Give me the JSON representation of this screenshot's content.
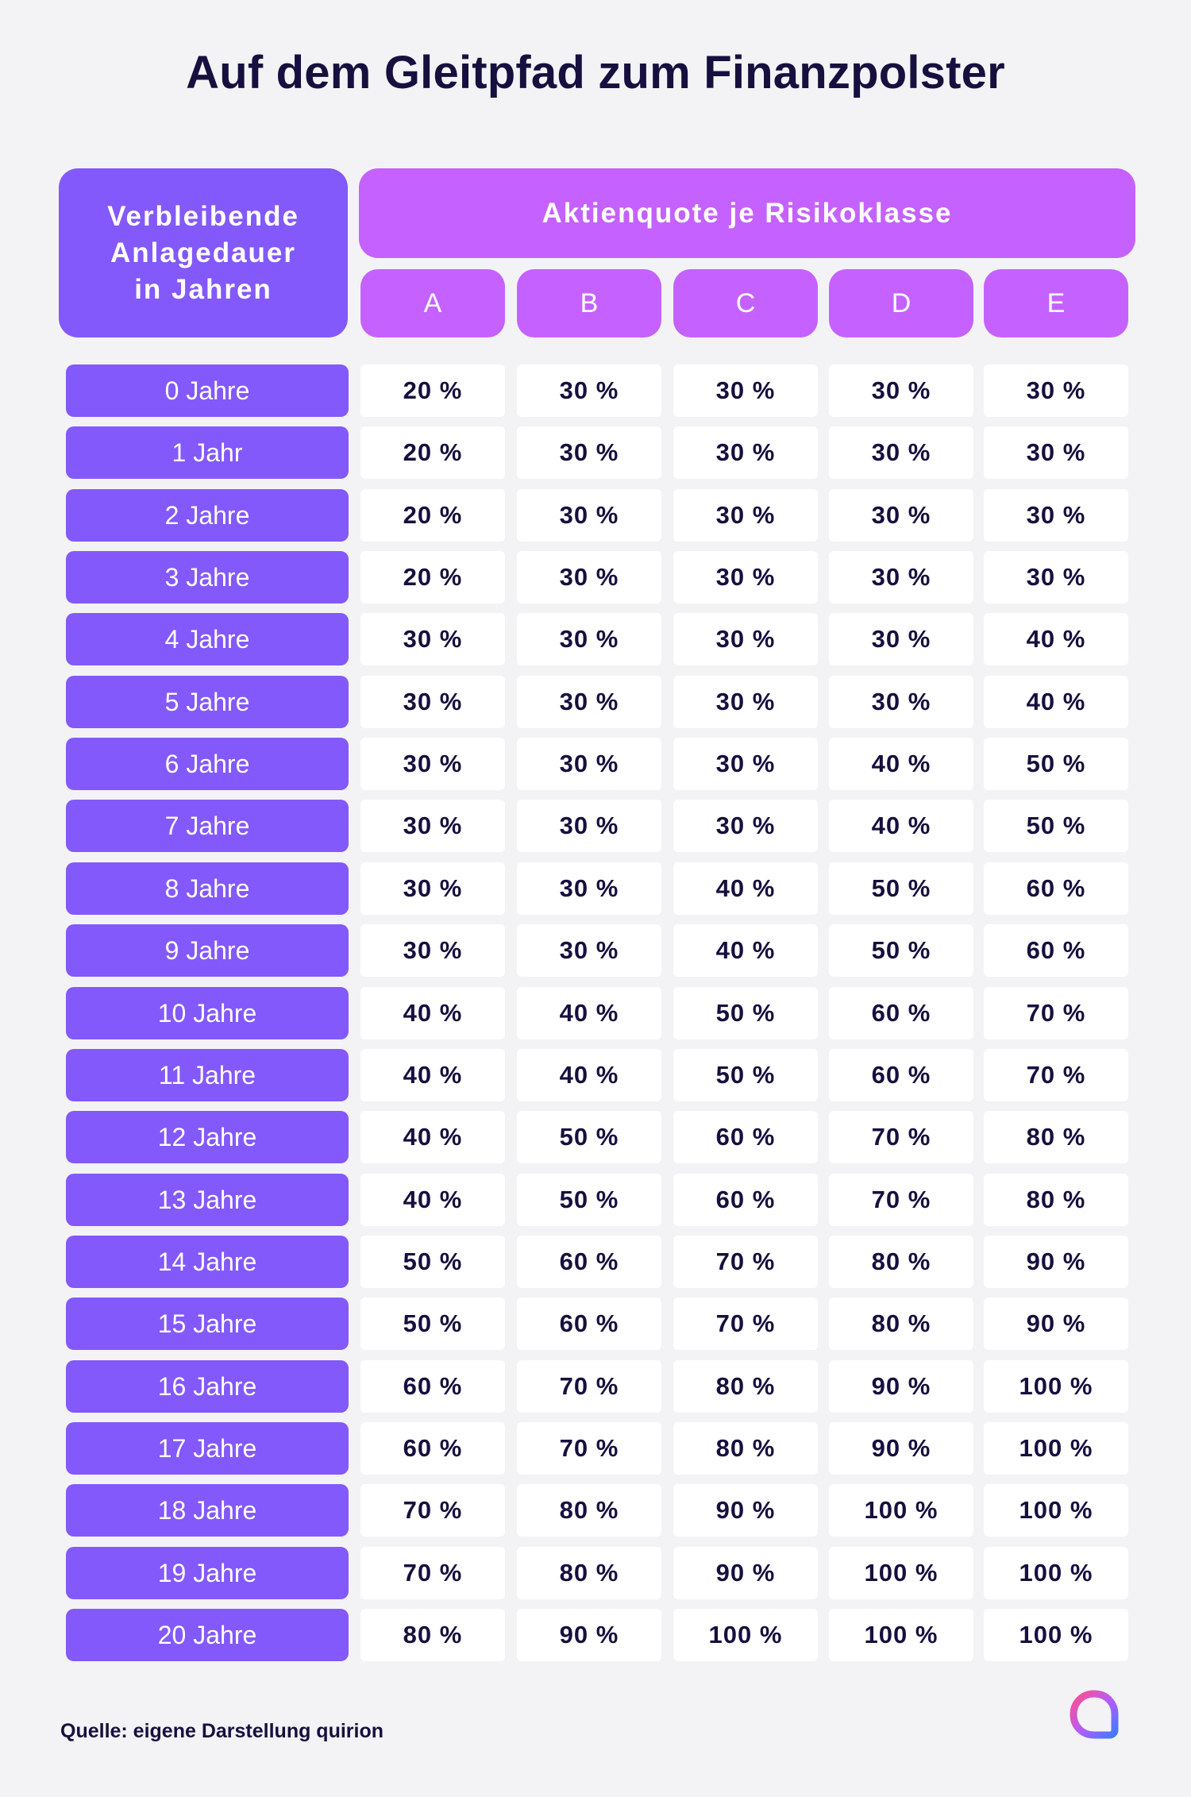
{
  "title": "Auf dem Gleitpfad zum Finanzpolster",
  "source": "Quelle: eigene Darstellung quirion",
  "logo_icon": "quirion-logo-icon",
  "colors": {
    "label_bg": "#8359fb",
    "header_bg": "#c562ff",
    "cell_bg": "#ffffff",
    "text_dark": "#16103f",
    "background": "#f3f3f6"
  },
  "chart_data": {
    "type": "table",
    "row_header": "Verbleibende\nAnlagedauer\nin Jahren",
    "group_header": "Aktienquote je Risikoklasse",
    "columns": [
      "A",
      "B",
      "C",
      "D",
      "E"
    ],
    "rows": [
      {
        "label": "0 Jahre",
        "values": [
          "20 %",
          "30 %",
          "30 %",
          "30 %",
          "30 %"
        ]
      },
      {
        "label": "1 Jahr",
        "values": [
          "20 %",
          "30 %",
          "30 %",
          "30 %",
          "30 %"
        ]
      },
      {
        "label": "2 Jahre",
        "values": [
          "20 %",
          "30 %",
          "30 %",
          "30 %",
          "30 %"
        ]
      },
      {
        "label": "3 Jahre",
        "values": [
          "20 %",
          "30 %",
          "30 %",
          "30 %",
          "30 %"
        ]
      },
      {
        "label": "4 Jahre",
        "values": [
          "30 %",
          "30 %",
          "30 %",
          "30 %",
          "40 %"
        ]
      },
      {
        "label": "5 Jahre",
        "values": [
          "30 %",
          "30 %",
          "30 %",
          "30 %",
          "40 %"
        ]
      },
      {
        "label": "6 Jahre",
        "values": [
          "30 %",
          "30 %",
          "30 %",
          "40 %",
          "50 %"
        ]
      },
      {
        "label": "7 Jahre",
        "values": [
          "30 %",
          "30 %",
          "30 %",
          "40 %",
          "50 %"
        ]
      },
      {
        "label": "8 Jahre",
        "values": [
          "30 %",
          "30 %",
          "40 %",
          "50 %",
          "60 %"
        ]
      },
      {
        "label": "9 Jahre",
        "values": [
          "30 %",
          "30 %",
          "40 %",
          "50 %",
          "60 %"
        ]
      },
      {
        "label": "10 Jahre",
        "values": [
          "40 %",
          "40 %",
          "50 %",
          "60 %",
          "70 %"
        ]
      },
      {
        "label": "11 Jahre",
        "values": [
          "40 %",
          "40 %",
          "50 %",
          "60 %",
          "70 %"
        ]
      },
      {
        "label": "12 Jahre",
        "values": [
          "40 %",
          "50 %",
          "60 %",
          "70 %",
          "80 %"
        ]
      },
      {
        "label": "13 Jahre",
        "values": [
          "40 %",
          "50 %",
          "60 %",
          "70 %",
          "80 %"
        ]
      },
      {
        "label": "14 Jahre",
        "values": [
          "50 %",
          "60 %",
          "70 %",
          "80 %",
          "90 %"
        ]
      },
      {
        "label": "15 Jahre",
        "values": [
          "50 %",
          "60 %",
          "70 %",
          "80 %",
          "90 %"
        ]
      },
      {
        "label": "16 Jahre",
        "values": [
          "60 %",
          "70 %",
          "80 %",
          "90 %",
          "100 %"
        ]
      },
      {
        "label": "17 Jahre",
        "values": [
          "60 %",
          "70 %",
          "80 %",
          "90 %",
          "100 %"
        ]
      },
      {
        "label": "18 Jahre",
        "values": [
          "70 %",
          "80 %",
          "90 %",
          "100 %",
          "100 %"
        ]
      },
      {
        "label": "19 Jahre",
        "values": [
          "70 %",
          "80 %",
          "90 %",
          "100 %",
          "100 %"
        ]
      },
      {
        "label": "20 Jahre",
        "values": [
          "80 %",
          "90 %",
          "100 %",
          "100 %",
          "100 %"
        ]
      }
    ]
  }
}
